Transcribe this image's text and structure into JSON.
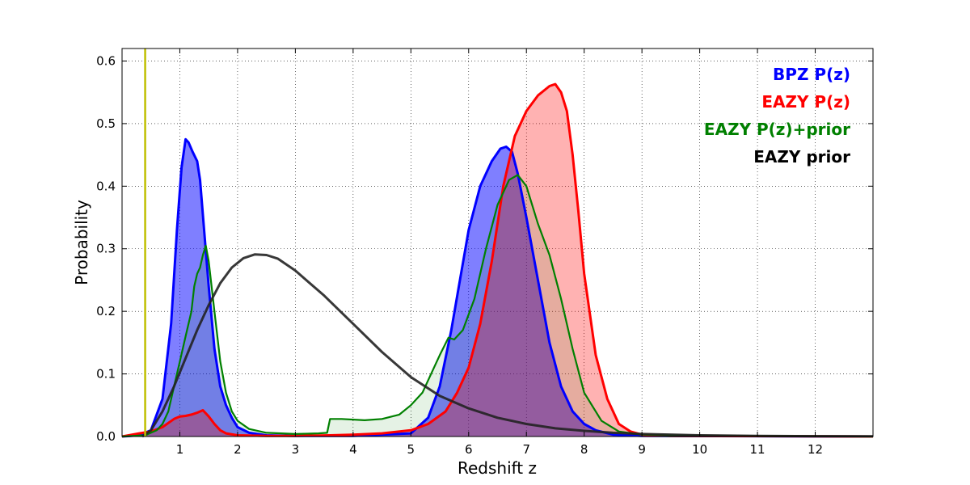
{
  "chart_data": {
    "type": "area",
    "title": "",
    "xlabel": "Redshift z",
    "ylabel": "Probability",
    "xlim": [
      0,
      13
    ],
    "ylim": [
      0,
      0.62
    ],
    "xticks": [
      1,
      2,
      3,
      4,
      5,
      6,
      7,
      8,
      9,
      10,
      11,
      12
    ],
    "yticks": [
      0.0,
      0.1,
      0.2,
      0.3,
      0.4,
      0.5,
      0.6
    ],
    "xtick_labels": [
      "1",
      "2",
      "3",
      "4",
      "5",
      "6",
      "7",
      "8",
      "9",
      "10",
      "11",
      "12"
    ],
    "ytick_labels": [
      "0.0",
      "0.1",
      "0.2",
      "0.3",
      "0.4",
      "0.5",
      "0.6"
    ],
    "grid": true,
    "legend_position": "top-right",
    "reference_line": {
      "x": 0.4,
      "color": "#bfbf00"
    },
    "series": [
      {
        "name": "BPZ P(z)",
        "color": "#0000ff",
        "fill": "#0000ff",
        "fill_opacity": 0.5,
        "points": [
          [
            0,
            0
          ],
          [
            0.3,
            0.002
          ],
          [
            0.5,
            0.01
          ],
          [
            0.7,
            0.06
          ],
          [
            0.85,
            0.18
          ],
          [
            0.95,
            0.33
          ],
          [
            1.03,
            0.43
          ],
          [
            1.1,
            0.475
          ],
          [
            1.15,
            0.47
          ],
          [
            1.22,
            0.455
          ],
          [
            1.3,
            0.44
          ],
          [
            1.35,
            0.41
          ],
          [
            1.42,
            0.33
          ],
          [
            1.5,
            0.24
          ],
          [
            1.6,
            0.14
          ],
          [
            1.7,
            0.08
          ],
          [
            1.8,
            0.05
          ],
          [
            1.9,
            0.03
          ],
          [
            2.0,
            0.015
          ],
          [
            2.2,
            0.006
          ],
          [
            2.5,
            0.002
          ],
          [
            3,
            0.001
          ],
          [
            4,
            0.001
          ],
          [
            5,
            0.005
          ],
          [
            5.3,
            0.03
          ],
          [
            5.5,
            0.08
          ],
          [
            5.7,
            0.17
          ],
          [
            5.85,
            0.25
          ],
          [
            6.0,
            0.33
          ],
          [
            6.2,
            0.4
          ],
          [
            6.4,
            0.44
          ],
          [
            6.55,
            0.46
          ],
          [
            6.65,
            0.463
          ],
          [
            6.75,
            0.455
          ],
          [
            6.85,
            0.42
          ],
          [
            7.0,
            0.35
          ],
          [
            7.2,
            0.25
          ],
          [
            7.4,
            0.15
          ],
          [
            7.6,
            0.08
          ],
          [
            7.8,
            0.04
          ],
          [
            8.0,
            0.02
          ],
          [
            8.2,
            0.01
          ],
          [
            8.5,
            0.003
          ],
          [
            9,
            0.001
          ],
          [
            13,
            0
          ]
        ]
      },
      {
        "name": "EAZY P(z)",
        "color": "#ff0000",
        "fill": "#ff0000",
        "fill_opacity": 0.3,
        "points": [
          [
            0,
            0
          ],
          [
            0.3,
            0.005
          ],
          [
            0.5,
            0.008
          ],
          [
            0.7,
            0.015
          ],
          [
            0.9,
            0.028
          ],
          [
            1.0,
            0.032
          ],
          [
            1.1,
            0.033
          ],
          [
            1.2,
            0.035
          ],
          [
            1.3,
            0.038
          ],
          [
            1.4,
            0.042
          ],
          [
            1.5,
            0.032
          ],
          [
            1.6,
            0.02
          ],
          [
            1.7,
            0.01
          ],
          [
            1.8,
            0.005
          ],
          [
            2.0,
            0.002
          ],
          [
            2.5,
            0.001
          ],
          [
            3.0,
            0.001
          ],
          [
            3.6,
            0.002
          ],
          [
            4.0,
            0.003
          ],
          [
            4.5,
            0.005
          ],
          [
            5.0,
            0.01
          ],
          [
            5.3,
            0.02
          ],
          [
            5.6,
            0.04
          ],
          [
            5.8,
            0.07
          ],
          [
            6.0,
            0.11
          ],
          [
            6.2,
            0.18
          ],
          [
            6.4,
            0.28
          ],
          [
            6.6,
            0.4
          ],
          [
            6.8,
            0.48
          ],
          [
            7.0,
            0.52
          ],
          [
            7.2,
            0.545
          ],
          [
            7.4,
            0.56
          ],
          [
            7.5,
            0.563
          ],
          [
            7.6,
            0.55
          ],
          [
            7.7,
            0.52
          ],
          [
            7.8,
            0.45
          ],
          [
            7.9,
            0.36
          ],
          [
            8.0,
            0.26
          ],
          [
            8.2,
            0.13
          ],
          [
            8.4,
            0.06
          ],
          [
            8.6,
            0.02
          ],
          [
            8.8,
            0.008
          ],
          [
            9.0,
            0.003
          ],
          [
            9.5,
            0.001
          ],
          [
            13,
            0
          ]
        ]
      },
      {
        "name": "EAZY P(z)+prior",
        "color": "#008000",
        "fill": "#008000",
        "fill_opacity": 0.1,
        "points": [
          [
            0,
            0
          ],
          [
            0.4,
            0.002
          ],
          [
            0.6,
            0.01
          ],
          [
            0.7,
            0.02
          ],
          [
            0.8,
            0.04
          ],
          [
            0.9,
            0.08
          ],
          [
            1.0,
            0.12
          ],
          [
            1.1,
            0.16
          ],
          [
            1.2,
            0.2
          ],
          [
            1.25,
            0.24
          ],
          [
            1.3,
            0.26
          ],
          [
            1.35,
            0.27
          ],
          [
            1.4,
            0.29
          ],
          [
            1.45,
            0.305
          ],
          [
            1.5,
            0.28
          ],
          [
            1.6,
            0.2
          ],
          [
            1.7,
            0.12
          ],
          [
            1.8,
            0.07
          ],
          [
            1.9,
            0.04
          ],
          [
            2.0,
            0.025
          ],
          [
            2.2,
            0.012
          ],
          [
            2.5,
            0.006
          ],
          [
            3.0,
            0.004
          ],
          [
            3.4,
            0.005
          ],
          [
            3.55,
            0.006
          ],
          [
            3.6,
            0.028
          ],
          [
            3.8,
            0.028
          ],
          [
            4.2,
            0.026
          ],
          [
            4.5,
            0.028
          ],
          [
            4.8,
            0.035
          ],
          [
            5.0,
            0.05
          ],
          [
            5.2,
            0.07
          ],
          [
            5.35,
            0.1
          ],
          [
            5.5,
            0.13
          ],
          [
            5.65,
            0.158
          ],
          [
            5.75,
            0.155
          ],
          [
            5.9,
            0.17
          ],
          [
            6.1,
            0.22
          ],
          [
            6.3,
            0.3
          ],
          [
            6.5,
            0.37
          ],
          [
            6.7,
            0.41
          ],
          [
            6.85,
            0.418
          ],
          [
            7.0,
            0.4
          ],
          [
            7.2,
            0.34
          ],
          [
            7.4,
            0.29
          ],
          [
            7.6,
            0.22
          ],
          [
            7.8,
            0.14
          ],
          [
            8.0,
            0.07
          ],
          [
            8.3,
            0.025
          ],
          [
            8.6,
            0.008
          ],
          [
            9.0,
            0.003
          ],
          [
            10,
            0.001
          ],
          [
            13,
            0
          ]
        ]
      },
      {
        "name": "EAZY prior",
        "color": "#222222",
        "fill": "none",
        "fill_opacity": 0,
        "points": [
          [
            0.35,
            0
          ],
          [
            0.5,
            0.01
          ],
          [
            0.7,
            0.04
          ],
          [
            0.9,
            0.08
          ],
          [
            1.1,
            0.125
          ],
          [
            1.3,
            0.17
          ],
          [
            1.5,
            0.21
          ],
          [
            1.7,
            0.245
          ],
          [
            1.9,
            0.27
          ],
          [
            2.1,
            0.285
          ],
          [
            2.3,
            0.291
          ],
          [
            2.5,
            0.29
          ],
          [
            2.7,
            0.284
          ],
          [
            3.0,
            0.265
          ],
          [
            3.5,
            0.225
          ],
          [
            4.0,
            0.18
          ],
          [
            4.5,
            0.135
          ],
          [
            5.0,
            0.095
          ],
          [
            5.5,
            0.065
          ],
          [
            6.0,
            0.045
          ],
          [
            6.5,
            0.03
          ],
          [
            7.0,
            0.02
          ],
          [
            7.5,
            0.013
          ],
          [
            8.0,
            0.009
          ],
          [
            8.5,
            0.006
          ],
          [
            9.0,
            0.004
          ],
          [
            10,
            0.002
          ],
          [
            11,
            0.001
          ],
          [
            12,
            0.0005
          ],
          [
            13,
            0.0002
          ]
        ]
      }
    ]
  }
}
